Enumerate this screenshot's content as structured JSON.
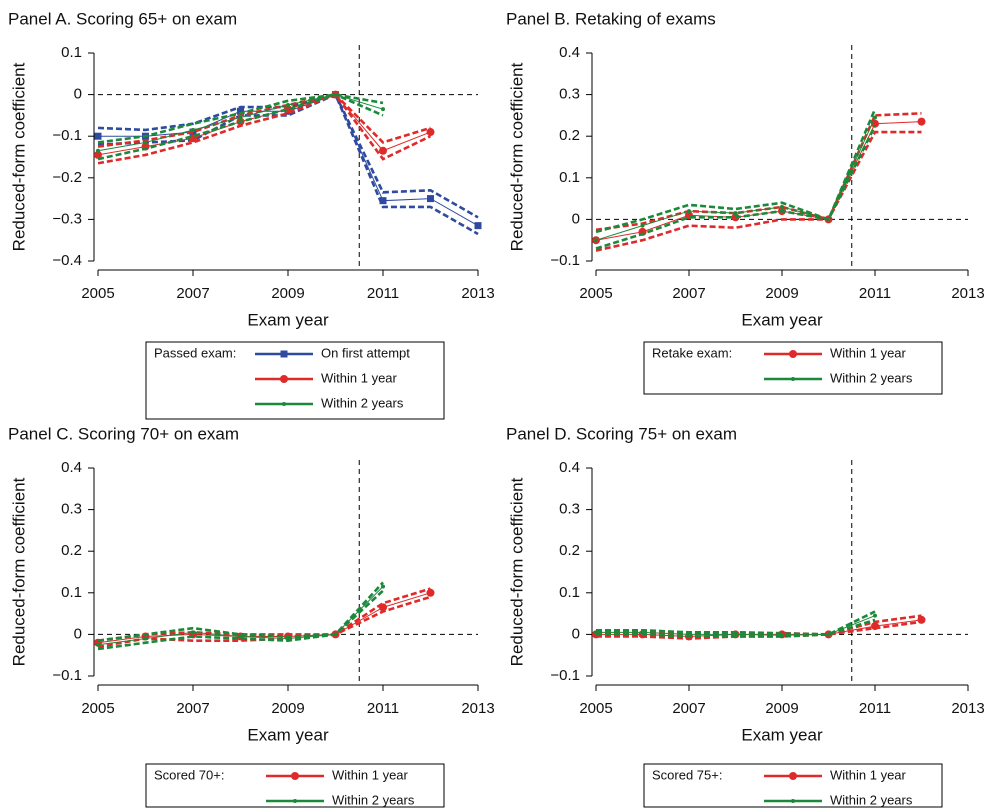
{
  "chart_data": [
    {
      "type": "line",
      "title": "Panel A. Scoring 65+ on exam",
      "y_label": "Reduced-form coefficient",
      "x_label": "Exam year",
      "x": [
        2005,
        2006,
        2007,
        2008,
        2009,
        2010,
        2011,
        2012,
        2013
      ],
      "xlim": [
        2005,
        2013
      ],
      "xticks": [
        2005,
        2007,
        2009,
        2011,
        2013
      ],
      "ylim": [
        -0.4,
        0.1
      ],
      "yticks": [
        {
          "value": -0.4,
          "label": "−0.4"
        },
        {
          "value": -0.3,
          "label": "−0.3"
        },
        {
          "value": -0.2,
          "label": "−0.2"
        },
        {
          "value": -0.1,
          "label": "−0.1"
        },
        0,
        0.1
      ],
      "legend_title": "Passed exam:",
      "legend": "below",
      "cutoff": 2010.5,
      "series": [
        {
          "name": "On first attempt",
          "color": "#2f4ba0",
          "marker": "square",
          "values": [
            -0.1,
            -0.1,
            -0.09,
            -0.04,
            -0.04,
            0,
            -0.255,
            -0.25,
            -0.315
          ],
          "ci_low": [
            -0.12,
            -0.115,
            -0.11,
            -0.05,
            -0.05,
            0,
            -0.27,
            -0.27,
            -0.335
          ],
          "ci_high": [
            -0.08,
            -0.085,
            -0.07,
            -0.03,
            -0.03,
            0,
            -0.235,
            -0.23,
            -0.295
          ]
        },
        {
          "name": "Within 1 year",
          "color": "#e02a2a",
          "marker": "circle",
          "values": [
            -0.145,
            -0.125,
            -0.105,
            -0.065,
            -0.035,
            0,
            -0.135,
            -0.09,
            null
          ],
          "ci_low": [
            -0.165,
            -0.145,
            -0.115,
            -0.075,
            -0.045,
            0,
            -0.155,
            -0.1,
            null
          ],
          "ci_high": [
            -0.125,
            -0.11,
            -0.09,
            -0.05,
            -0.025,
            0,
            -0.115,
            -0.08,
            null
          ]
        },
        {
          "name": "Within 2 years",
          "color": "#1a8a3a",
          "marker": "dot",
          "values": [
            -0.135,
            -0.115,
            -0.085,
            -0.055,
            -0.025,
            0,
            -0.035,
            null,
            null
          ],
          "ci_low": [
            -0.155,
            -0.13,
            -0.1,
            -0.065,
            -0.035,
            0,
            -0.05,
            null,
            null
          ],
          "ci_high": [
            -0.115,
            -0.1,
            -0.07,
            -0.045,
            -0.015,
            0,
            -0.02,
            null,
            null
          ]
        }
      ]
    },
    {
      "type": "line",
      "title": "Panel B. Retaking of exams",
      "y_label": "Reduced-form coefficient",
      "x_label": "Exam year",
      "x": [
        2005,
        2006,
        2007,
        2008,
        2009,
        2010,
        2011,
        2012,
        2013
      ],
      "xlim": [
        2005,
        2013
      ],
      "xticks": [
        2005,
        2007,
        2009,
        2011,
        2013
      ],
      "ylim": [
        -0.1,
        0.4
      ],
      "yticks": [
        {
          "value": -0.1,
          "label": "−0.1"
        },
        0,
        0.1,
        0.2,
        0.3,
        0.4
      ],
      "legend_title": "Retake exam:",
      "legend": "below",
      "cutoff": 2010.5,
      "series": [
        {
          "name": "Within 1 year",
          "color": "#e02a2a",
          "marker": "circle",
          "values": [
            -0.05,
            -0.03,
            0.01,
            0.005,
            0.02,
            0,
            0.23,
            0.235,
            null
          ],
          "ci_low": [
            -0.075,
            -0.05,
            -0.015,
            -0.02,
            0,
            0,
            0.21,
            0.21,
            null
          ],
          "ci_high": [
            -0.025,
            -0.01,
            0.02,
            0.015,
            0.03,
            0,
            0.25,
            0.255,
            null
          ]
        },
        {
          "name": "Within 2 years",
          "color": "#1a8a3a",
          "marker": "dot",
          "values": [
            -0.05,
            -0.015,
            0.02,
            0.015,
            0.03,
            0,
            0.245,
            null,
            null
          ],
          "ci_low": [
            -0.07,
            -0.035,
            0.005,
            0.005,
            0.02,
            0,
            0.225,
            null,
            null
          ],
          "ci_high": [
            -0.03,
            0.0,
            0.035,
            0.025,
            0.04,
            0,
            0.265,
            null,
            null
          ]
        }
      ]
    },
    {
      "type": "line",
      "title": "Panel C. Scoring 70+ on exam",
      "y_label": "Reduced-form coefficient",
      "x_label": "Exam year",
      "x": [
        2005,
        2006,
        2007,
        2008,
        2009,
        2010,
        2011,
        2012,
        2013
      ],
      "xlim": [
        2005,
        2013
      ],
      "xticks": [
        2005,
        2007,
        2009,
        2011,
        2013
      ],
      "ylim": [
        -0.1,
        0.4
      ],
      "yticks": [
        {
          "value": -0.1,
          "label": "−0.1"
        },
        0,
        0.1,
        0.2,
        0.3,
        0.4
      ],
      "legend_title": "Scored 70+:",
      "legend": "below",
      "cutoff": 2010.5,
      "series": [
        {
          "name": "Within 1 year",
          "color": "#e02a2a",
          "marker": "circle",
          "values": [
            -0.02,
            -0.005,
            0,
            -0.005,
            -0.005,
            0,
            0.065,
            0.1,
            null
          ],
          "ci_low": [
            -0.03,
            -0.01,
            -0.015,
            -0.015,
            -0.01,
            0,
            0.055,
            0.09,
            null
          ],
          "ci_high": [
            -0.015,
            0,
            0.005,
            0,
            0,
            0,
            0.075,
            0.11,
            null
          ]
        },
        {
          "name": "Within 2 years",
          "color": "#1a8a3a",
          "marker": "dot",
          "values": [
            -0.025,
            -0.01,
            0.005,
            -0.005,
            -0.01,
            0,
            0.115,
            null,
            null
          ],
          "ci_low": [
            -0.035,
            -0.02,
            -0.005,
            -0.01,
            -0.015,
            0,
            0.105,
            null,
            null
          ],
          "ci_high": [
            -0.015,
            0,
            0.015,
            0,
            -0.005,
            0,
            0.125,
            null,
            null
          ]
        }
      ]
    },
    {
      "type": "line",
      "title": "Panel D. Scoring 75+ on exam",
      "y_label": "Reduced-form coefficient",
      "x_label": "Exam year",
      "x": [
        2005,
        2006,
        2007,
        2008,
        2009,
        2010,
        2011,
        2012,
        2013
      ],
      "xlim": [
        2005,
        2013
      ],
      "xticks": [
        2005,
        2007,
        2009,
        2011,
        2013
      ],
      "ylim": [
        -0.1,
        0.4
      ],
      "yticks": [
        {
          "value": -0.1,
          "label": "−0.1"
        },
        0,
        0.1,
        0.2,
        0.3,
        0.4
      ],
      "legend_title": "Scored 75+:",
      "legend": "below",
      "cutoff": 2010.5,
      "series": [
        {
          "name": "Within 1 year",
          "color": "#e02a2a",
          "marker": "circle",
          "values": [
            0,
            0,
            -0.005,
            0,
            0,
            0,
            0.02,
            0.035,
            null
          ],
          "ci_low": [
            -0.005,
            -0.005,
            -0.01,
            -0.005,
            -0.005,
            0,
            0.015,
            0.03,
            null
          ],
          "ci_high": [
            0.005,
            0.005,
            0,
            0.005,
            0.003,
            0,
            0.03,
            0.045,
            null
          ]
        },
        {
          "name": "Within 2 years",
          "color": "#1a8a3a",
          "marker": "dot",
          "values": [
            0.005,
            0.005,
            0,
            0,
            -0.002,
            0,
            0.045,
            null,
            null
          ],
          "ci_low": [
            0,
            0,
            -0.005,
            -0.005,
            -0.005,
            0,
            0.035,
            null,
            null
          ],
          "ci_high": [
            0.01,
            0.01,
            0.005,
            0.005,
            0.002,
            0,
            0.055,
            null,
            null
          ]
        }
      ]
    }
  ]
}
